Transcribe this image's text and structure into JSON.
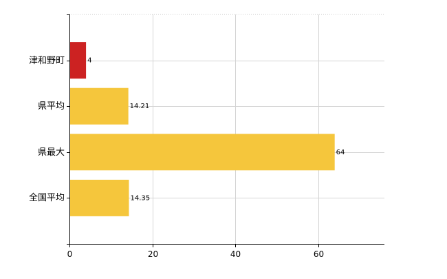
{
  "chart_data": {
    "type": "bar",
    "orientation": "horizontal",
    "categories": [
      "津和野町",
      "県平均",
      "県最大",
      "全国平均"
    ],
    "values": [
      4,
      14.21,
      64,
      14.35
    ],
    "value_labels": [
      "4",
      "14.21",
      "64",
      "14.35"
    ],
    "bar_colors": [
      "#cc2222",
      "#f5c63c",
      "#f5c63c",
      "#f5c63c"
    ],
    "xlim": [
      0,
      76
    ],
    "x_ticks": [
      0,
      20,
      40,
      60
    ],
    "x_tick_labels": [
      "0",
      "20",
      "40",
      "60"
    ],
    "grid": true,
    "title": "",
    "xlabel": "",
    "ylabel": ""
  }
}
